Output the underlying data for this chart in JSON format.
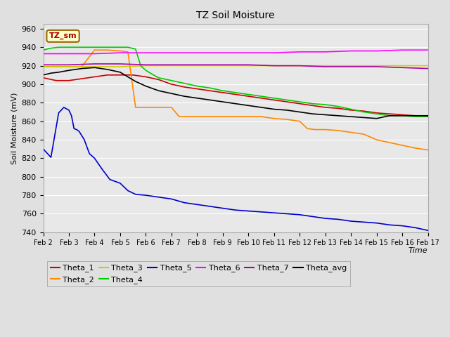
{
  "title": "TZ Soil Moisture",
  "xlabel": "Time",
  "ylabel": "Soil Moisture (mV)",
  "ylim": [
    740,
    965
  ],
  "xlim": [
    0,
    15
  ],
  "xtick_labels": [
    "Feb 2",
    "Feb 3",
    "Feb 4",
    "Feb 5",
    "Feb 6",
    "Feb 7",
    "Feb 8",
    "Feb 9",
    "Feb 10",
    "Feb 11",
    "Feb 12",
    "Feb 13",
    "Feb 14",
    "Feb 15",
    "Feb 16",
    "Feb 17"
  ],
  "ytick_values": [
    740,
    760,
    780,
    800,
    820,
    840,
    860,
    880,
    900,
    920,
    940,
    960
  ],
  "background_color": "#e8e8e8",
  "figure_background": "#e0e0e0",
  "plot_bg": "#e8e8e8",
  "grid_color": "#ffffff",
  "legend_box_text": "TZ_sm",
  "legend_box_bg": "#ffffcc",
  "legend_box_edge": "#996600",
  "series": {
    "Theta_1": {
      "color": "#cc0000",
      "points": [
        [
          0,
          907
        ],
        [
          0.5,
          904
        ],
        [
          1,
          904
        ],
        [
          1.5,
          906
        ],
        [
          2,
          908
        ],
        [
          2.5,
          910
        ],
        [
          3,
          910
        ],
        [
          3.5,
          910
        ],
        [
          4,
          908
        ],
        [
          4.5,
          905
        ],
        [
          5,
          900
        ],
        [
          5.5,
          897
        ],
        [
          6,
          895
        ],
        [
          6.5,
          893
        ],
        [
          7,
          891
        ],
        [
          7.5,
          889
        ],
        [
          8,
          887
        ],
        [
          8.5,
          885
        ],
        [
          9,
          883
        ],
        [
          9.5,
          881
        ],
        [
          10,
          879
        ],
        [
          10.5,
          877
        ],
        [
          11,
          875
        ],
        [
          11.5,
          874
        ],
        [
          12,
          872
        ],
        [
          12.5,
          871
        ],
        [
          13,
          869
        ],
        [
          13.5,
          868
        ],
        [
          14,
          867
        ],
        [
          14.5,
          866
        ],
        [
          15,
          865
        ]
      ]
    },
    "Theta_2": {
      "color": "#ff8800",
      "points": [
        [
          0,
          919
        ],
        [
          0.3,
          919
        ],
        [
          0.6,
          919
        ],
        [
          1.0,
          919
        ],
        [
          1.5,
          919
        ],
        [
          2.0,
          937
        ],
        [
          2.5,
          937
        ],
        [
          3.0,
          936
        ],
        [
          3.3,
          935
        ],
        [
          3.6,
          875
        ],
        [
          4.0,
          875
        ],
        [
          4.5,
          875
        ],
        [
          5.0,
          875
        ],
        [
          5.3,
          865
        ],
        [
          5.5,
          865
        ],
        [
          6.0,
          865
        ],
        [
          6.5,
          865
        ],
        [
          7.0,
          865
        ],
        [
          7.5,
          865
        ],
        [
          8.0,
          865
        ],
        [
          8.5,
          865
        ],
        [
          9.0,
          863
        ],
        [
          9.5,
          862
        ],
        [
          10.0,
          860
        ],
        [
          10.3,
          852
        ],
        [
          10.6,
          851
        ],
        [
          11.0,
          851
        ],
        [
          11.5,
          850
        ],
        [
          12.0,
          848
        ],
        [
          12.5,
          846
        ],
        [
          13.0,
          840
        ],
        [
          13.5,
          837
        ],
        [
          14.0,
          834
        ],
        [
          14.5,
          831
        ],
        [
          15.0,
          829
        ]
      ]
    },
    "Theta_3": {
      "color": "#cccc00",
      "points": [
        [
          0,
          919
        ],
        [
          1,
          919
        ],
        [
          2,
          919
        ],
        [
          3,
          919
        ],
        [
          4,
          920
        ],
        [
          5,
          920
        ],
        [
          6,
          920
        ],
        [
          7,
          920
        ],
        [
          8,
          920
        ],
        [
          9,
          920
        ],
        [
          10,
          920
        ],
        [
          11,
          920
        ],
        [
          12,
          920
        ],
        [
          13,
          920
        ],
        [
          14,
          920
        ],
        [
          15,
          920
        ]
      ]
    },
    "Theta_4": {
      "color": "#00cc00",
      "points": [
        [
          0,
          937
        ],
        [
          0.3,
          939
        ],
        [
          0.6,
          940
        ],
        [
          1.0,
          940
        ],
        [
          1.5,
          940
        ],
        [
          2.0,
          940
        ],
        [
          2.5,
          940
        ],
        [
          3.0,
          940
        ],
        [
          3.3,
          940
        ],
        [
          3.6,
          938
        ],
        [
          3.8,
          920
        ],
        [
          4.0,
          915
        ],
        [
          4.3,
          910
        ],
        [
          4.5,
          907
        ],
        [
          5.0,
          904
        ],
        [
          5.5,
          901
        ],
        [
          6.0,
          898
        ],
        [
          6.5,
          896
        ],
        [
          7.0,
          893
        ],
        [
          7.5,
          891
        ],
        [
          8.0,
          889
        ],
        [
          8.5,
          887
        ],
        [
          9.0,
          885
        ],
        [
          9.5,
          883
        ],
        [
          10.0,
          881
        ],
        [
          10.5,
          879
        ],
        [
          11.0,
          878
        ],
        [
          11.5,
          876
        ],
        [
          12.0,
          873
        ],
        [
          12.5,
          870
        ],
        [
          13.0,
          868
        ],
        [
          13.5,
          866
        ],
        [
          14.0,
          866
        ],
        [
          14.5,
          865
        ],
        [
          15.0,
          865
        ]
      ]
    },
    "Theta_5": {
      "color": "#0000cc",
      "points": [
        [
          0,
          830
        ],
        [
          0.3,
          821
        ],
        [
          0.6,
          869
        ],
        [
          0.8,
          875
        ],
        [
          1.0,
          872
        ],
        [
          1.1,
          866
        ],
        [
          1.2,
          852
        ],
        [
          1.3,
          851
        ],
        [
          1.4,
          849
        ],
        [
          1.6,
          840
        ],
        [
          1.8,
          825
        ],
        [
          2.0,
          820
        ],
        [
          2.3,
          808
        ],
        [
          2.6,
          797
        ],
        [
          3.0,
          793
        ],
        [
          3.3,
          785
        ],
        [
          3.6,
          781
        ],
        [
          4.0,
          780
        ],
        [
          4.5,
          778
        ],
        [
          5.0,
          776
        ],
        [
          5.5,
          772
        ],
        [
          6.0,
          770
        ],
        [
          6.5,
          768
        ],
        [
          7.0,
          766
        ],
        [
          7.5,
          764
        ],
        [
          8.0,
          763
        ],
        [
          8.5,
          762
        ],
        [
          9.0,
          761
        ],
        [
          9.5,
          760
        ],
        [
          10.0,
          759
        ],
        [
          10.5,
          757
        ],
        [
          11.0,
          755
        ],
        [
          11.5,
          754
        ],
        [
          12.0,
          752
        ],
        [
          12.5,
          751
        ],
        [
          13.0,
          750
        ],
        [
          13.5,
          748
        ],
        [
          14.0,
          747
        ],
        [
          14.5,
          745
        ],
        [
          15.0,
          742
        ]
      ]
    },
    "Theta_6": {
      "color": "#ff00ff",
      "points": [
        [
          0,
          933
        ],
        [
          1,
          933
        ],
        [
          2,
          933
        ],
        [
          3,
          934
        ],
        [
          4,
          934
        ],
        [
          5,
          934
        ],
        [
          6,
          934
        ],
        [
          7,
          934
        ],
        [
          8,
          934
        ],
        [
          9,
          934
        ],
        [
          10,
          935
        ],
        [
          11,
          935
        ],
        [
          12,
          936
        ],
        [
          13,
          936
        ],
        [
          14,
          937
        ],
        [
          15,
          937
        ]
      ]
    },
    "Theta_7": {
      "color": "#aa00aa",
      "points": [
        [
          0,
          921
        ],
        [
          1,
          921
        ],
        [
          2,
          922
        ],
        [
          3,
          922
        ],
        [
          4,
          921
        ],
        [
          5,
          921
        ],
        [
          6,
          921
        ],
        [
          7,
          921
        ],
        [
          8,
          921
        ],
        [
          9,
          920
        ],
        [
          10,
          920
        ],
        [
          11,
          919
        ],
        [
          12,
          919
        ],
        [
          13,
          919
        ],
        [
          14,
          918
        ],
        [
          15,
          917
        ]
      ]
    },
    "Theta_avg": {
      "color": "#000000",
      "points": [
        [
          0,
          910
        ],
        [
          0.3,
          912
        ],
        [
          0.6,
          913
        ],
        [
          1.0,
          915
        ],
        [
          1.5,
          917
        ],
        [
          2.0,
          918
        ],
        [
          2.5,
          916
        ],
        [
          3.0,
          913
        ],
        [
          3.3,
          908
        ],
        [
          3.6,
          903
        ],
        [
          4.0,
          898
        ],
        [
          4.5,
          893
        ],
        [
          5.0,
          890
        ],
        [
          5.5,
          887
        ],
        [
          6.0,
          885
        ],
        [
          6.5,
          883
        ],
        [
          7.0,
          881
        ],
        [
          7.5,
          879
        ],
        [
          8.0,
          877
        ],
        [
          8.5,
          875
        ],
        [
          9.0,
          873
        ],
        [
          9.5,
          872
        ],
        [
          10.0,
          870
        ],
        [
          10.5,
          868
        ],
        [
          11.0,
          867
        ],
        [
          11.5,
          866
        ],
        [
          12.0,
          865
        ],
        [
          12.5,
          864
        ],
        [
          13.0,
          863
        ],
        [
          13.5,
          866
        ],
        [
          14.0,
          866
        ],
        [
          14.5,
          866
        ],
        [
          15.0,
          866
        ]
      ]
    }
  },
  "legend_entries_row1": [
    [
      "Theta_1",
      "#cc0000"
    ],
    [
      "Theta_2",
      "#ff8800"
    ],
    [
      "Theta_3",
      "#cccc00"
    ],
    [
      "Theta_4",
      "#00cc00"
    ],
    [
      "Theta_5",
      "#0000cc"
    ],
    [
      "Theta_6",
      "#ff00ff"
    ]
  ],
  "legend_entries_row2": [
    [
      "Theta_7",
      "#aa00aa"
    ],
    [
      "Theta_avg",
      "#000000"
    ]
  ]
}
